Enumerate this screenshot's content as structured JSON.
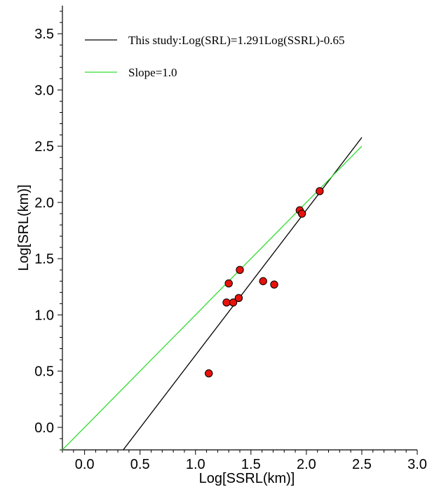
{
  "chart_data": {
    "type": "scatter",
    "title": "",
    "xlabel": "Log[SSRL(km)]",
    "ylabel": "Log[SRL(km)]",
    "xlim": [
      -0.2,
      3.0
    ],
    "ylim": [
      -0.2,
      3.75
    ],
    "xticks": [
      "0.0",
      "0.5",
      "1.0",
      "1.5",
      "2.0",
      "2.5",
      "3.0"
    ],
    "yticks": [
      "0.0",
      "0.5",
      "1.0",
      "1.5",
      "2.0",
      "2.5",
      "3.0",
      "3.5"
    ],
    "points": [
      {
        "x": 1.12,
        "y": 0.48
      },
      {
        "x": 1.28,
        "y": 1.11
      },
      {
        "x": 1.3,
        "y": 1.28
      },
      {
        "x": 1.34,
        "y": 1.11
      },
      {
        "x": 1.39,
        "y": 1.15
      },
      {
        "x": 1.4,
        "y": 1.4
      },
      {
        "x": 1.61,
        "y": 1.3
      },
      {
        "x": 1.71,
        "y": 1.27
      },
      {
        "x": 1.94,
        "y": 1.93
      },
      {
        "x": 1.96,
        "y": 1.9
      },
      {
        "x": 2.12,
        "y": 2.1
      }
    ],
    "lines": [
      {
        "name": "This study:Log(SRL)=1.291Log(SSRL)-0.65",
        "slope": 1.291,
        "intercept": -0.65,
        "x_range": [
          0.35,
          2.5
        ],
        "color": "#000000"
      },
      {
        "name": "Slope=1.0",
        "slope": 1.0,
        "intercept": 0.0,
        "x_range": [
          -0.2,
          2.5
        ],
        "color": "#33dd33"
      }
    ],
    "marker_color": "#e8120c",
    "legend_position": "top-left",
    "grid": false
  }
}
